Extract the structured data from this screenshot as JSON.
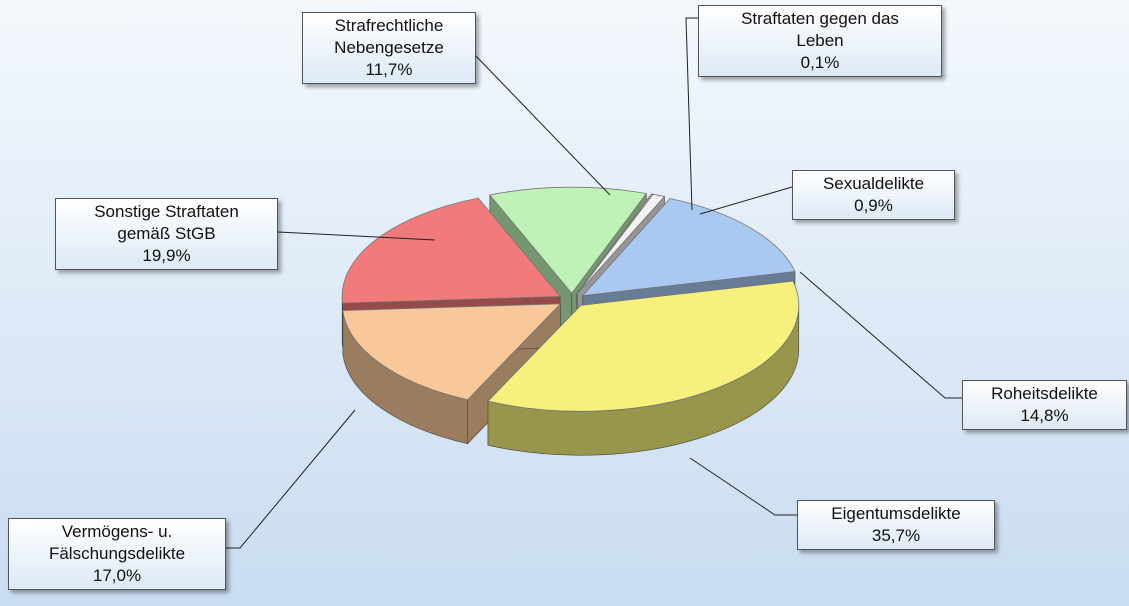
{
  "chart_data": {
    "type": "pie3d",
    "categories": [
      "Straftaten gegen das Leben",
      "Sexualdelikte",
      "Roheitsdelikte",
      "Eigentumsdelikte",
      "Vermögens- u. Fälschungsdelikte",
      "Sonstige Straftaten gemäß StGB",
      "Strafrechtliche Nebengesetze"
    ],
    "values": [
      0.1,
      0.9,
      14.8,
      35.7,
      17.0,
      19.9,
      11.7
    ],
    "value_labels": [
      "0,1%",
      "0,9%",
      "14,8%",
      "35,7%",
      "17,0%",
      "19,9%",
      "11,7%"
    ],
    "colors": [
      "#dcdcdc",
      "#f2f2f2",
      "#a9c9f2",
      "#f6f07c",
      "#f9c89a",
      "#f27a7a",
      "#bff2b6"
    ]
  }
}
